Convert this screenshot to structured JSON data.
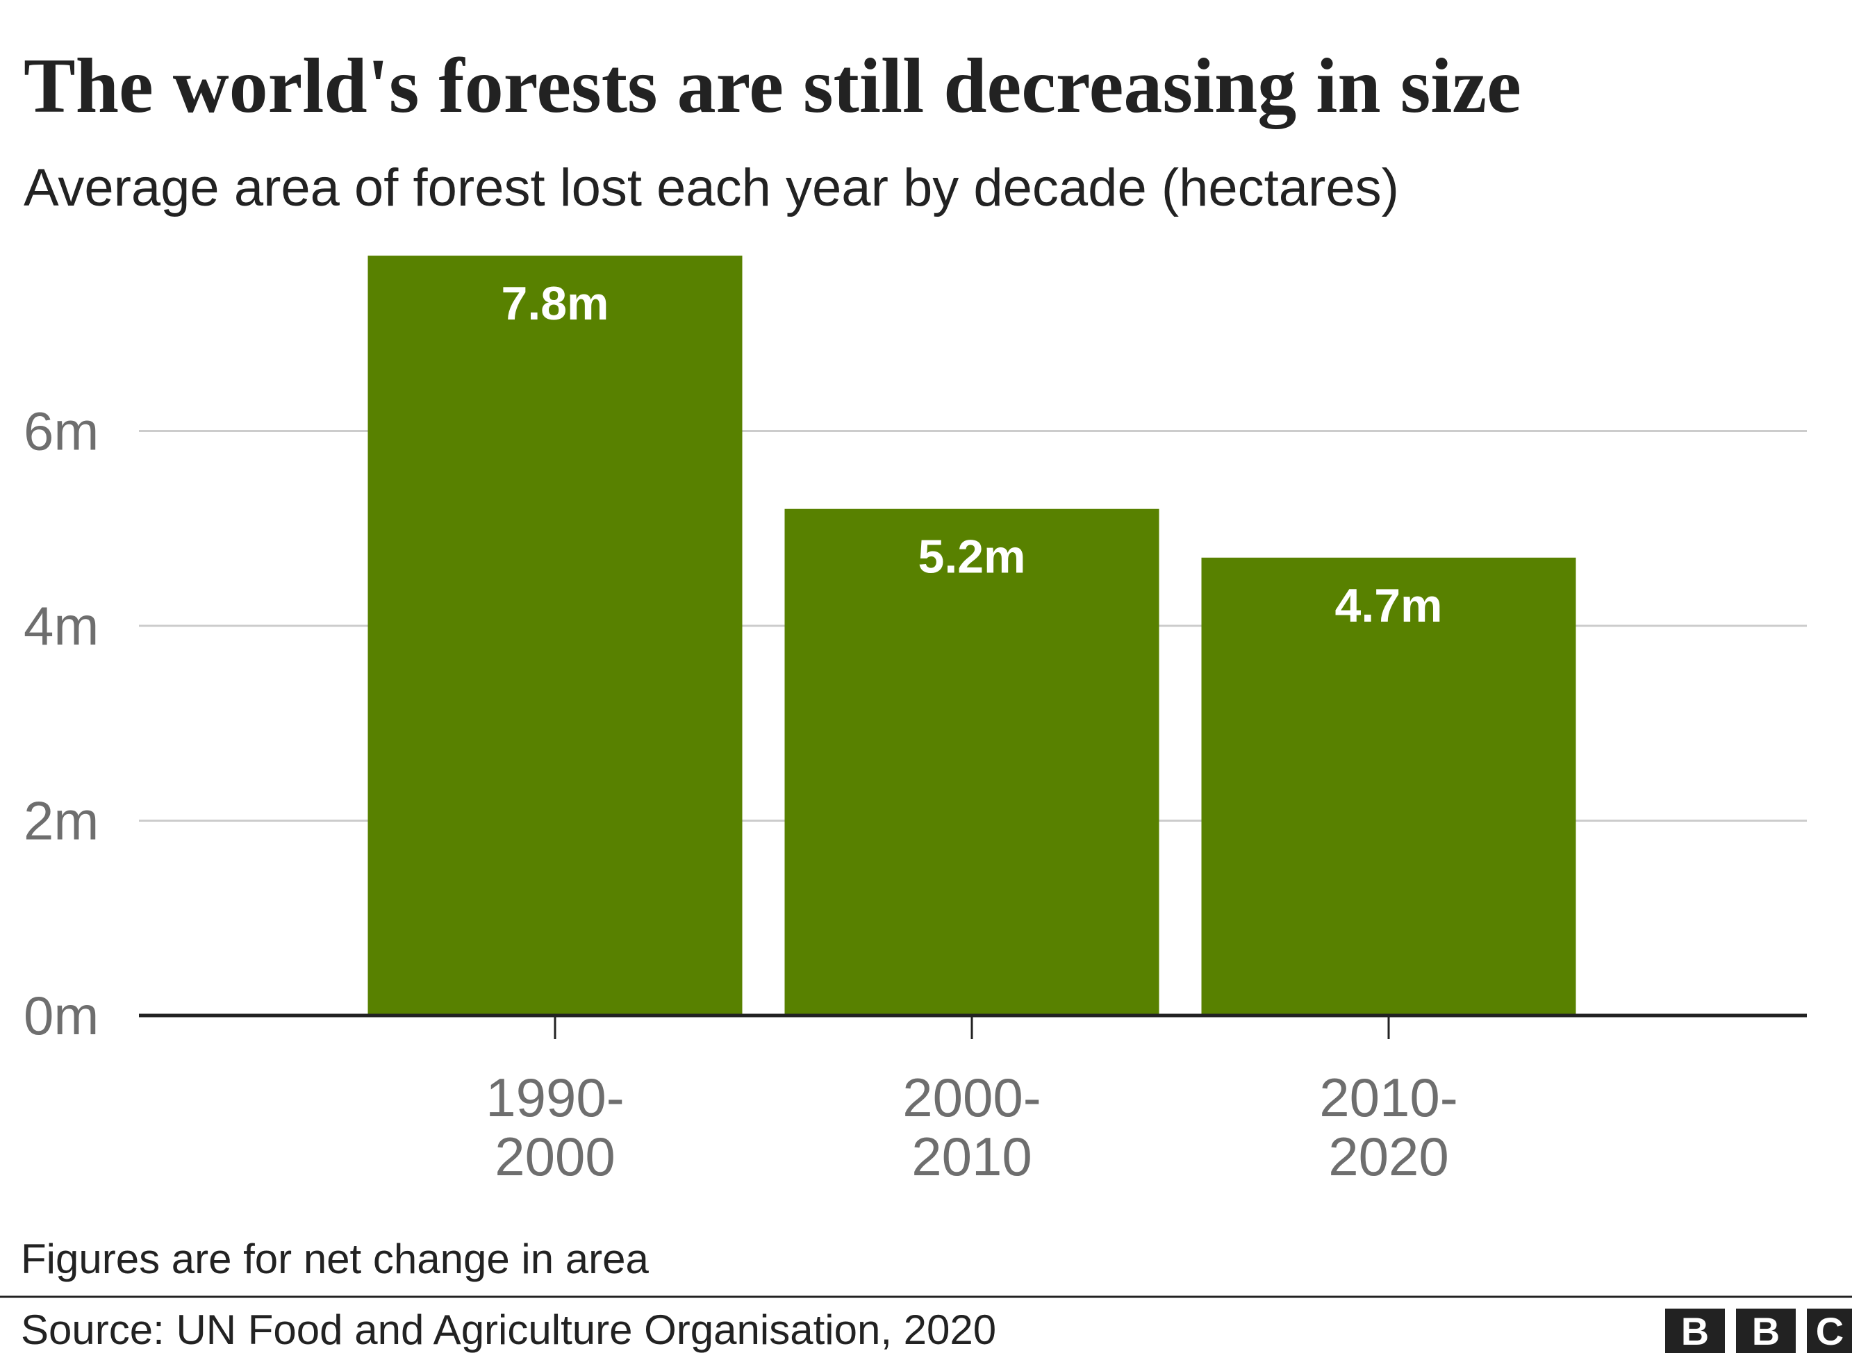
{
  "chart_data": {
    "type": "bar",
    "title": "The world's forests are still decreasing in size",
    "subtitle": "Average area of forest lost each year by decade (hectares)",
    "categories": [
      "1990-2000",
      "2000-2010",
      "2010-2020"
    ],
    "values": [
      7.8,
      5.2,
      4.7
    ],
    "value_labels": [
      "7.8m",
      "5.2m",
      "4.7m"
    ],
    "color": "#588100",
    "ylim": [
      0,
      8
    ],
    "yticks": [
      {
        "value": 0,
        "label": "0m"
      },
      {
        "value": 2,
        "label": "2m"
      },
      {
        "value": 4,
        "label": "4m"
      },
      {
        "value": 6,
        "label": "6m"
      }
    ],
    "grid": true,
    "note": "Figures are for net change in area",
    "source": "Source: UN Food and Agriculture Organisation, 2020",
    "logo": [
      "B",
      "B",
      "C"
    ]
  }
}
